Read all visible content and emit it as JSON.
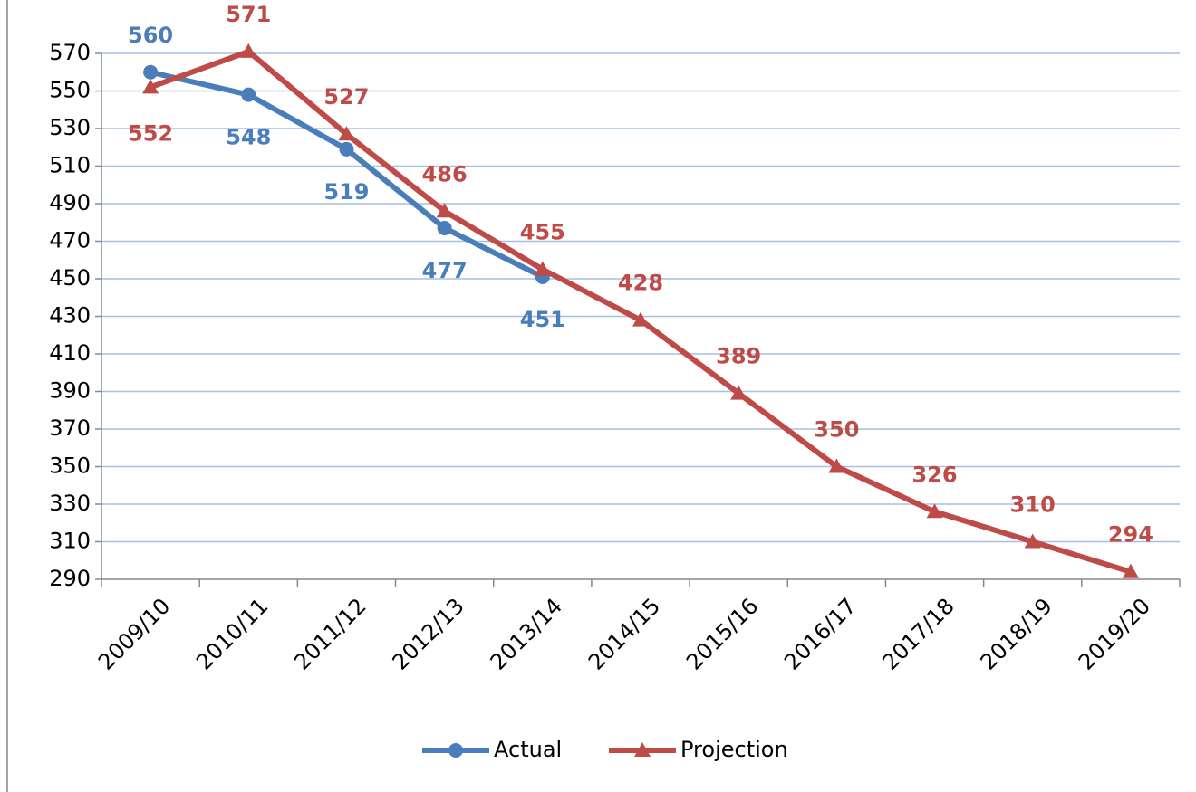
{
  "chart_data": {
    "type": "line",
    "categories": [
      "2009/10",
      "2010/11",
      "2011/12",
      "2012/13",
      "2013/14",
      "2014/15",
      "2015/16",
      "2016/17",
      "2017/18",
      "2018/19",
      "2019/20"
    ],
    "series": [
      {
        "name": "Actual",
        "color": "#4a7ebb",
        "marker": "circle",
        "values": [
          560,
          548,
          519,
          477,
          451,
          null,
          null,
          null,
          null,
          null,
          null
        ]
      },
      {
        "name": "Projection",
        "color": "#be4b48",
        "marker": "triangle",
        "values": [
          552,
          571,
          527,
          486,
          455,
          428,
          389,
          350,
          326,
          310,
          294
        ]
      }
    ],
    "ylim": [
      290,
      570
    ],
    "yticks": [
      290,
      310,
      330,
      350,
      370,
      390,
      410,
      430,
      450,
      470,
      490,
      510,
      530,
      550,
      570
    ],
    "grid": true,
    "legend": "bottom"
  }
}
